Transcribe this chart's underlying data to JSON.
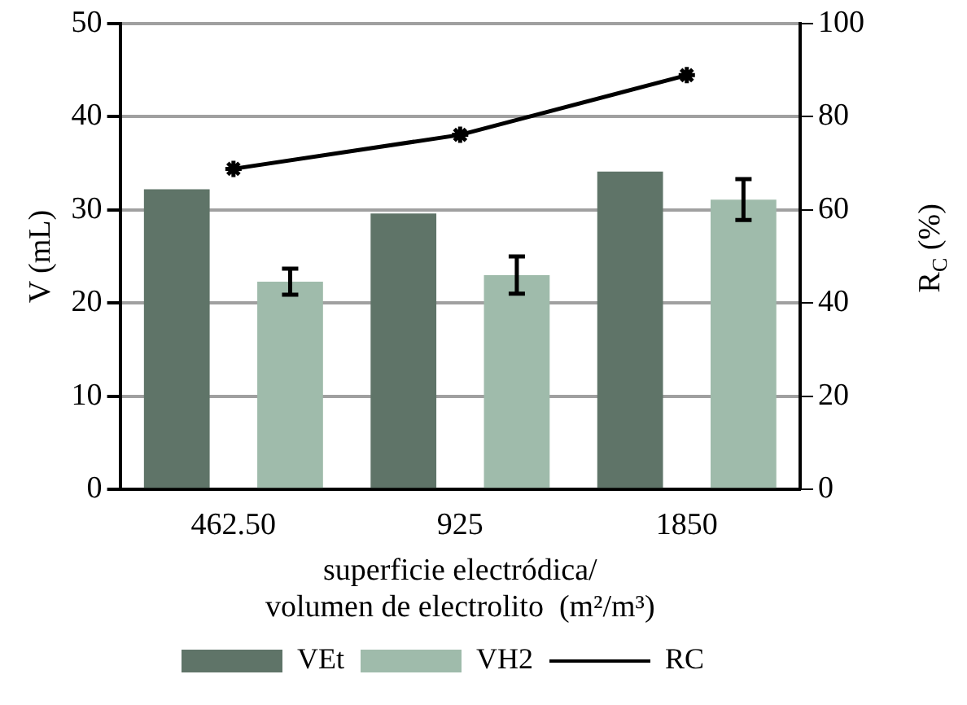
{
  "chart_data": {
    "type": "bar",
    "xlabel": "superficie electródica/\nvolumen de electrolito  (m²/m³)",
    "ylabel": "V (mL)",
    "y2label": "R$_{C}$ (%)",
    "categories": [
      "462.50",
      "925",
      "1850"
    ],
    "series": [
      {
        "name": "VEt",
        "color": "#5f7468",
        "values": [
          32.2,
          29.6,
          34.1
        ]
      },
      {
        "name": "VH2",
        "color": "#9fbbab",
        "values": [
          22.3,
          23.0,
          31.1
        ],
        "errors": [
          1.4,
          2.0,
          2.2
        ]
      },
      {
        "name": "RC",
        "type": "line",
        "axis": "y2",
        "color": "#000000",
        "values": [
          68.8,
          76.1,
          88.9
        ],
        "marker": "cross"
      }
    ],
    "ylim": [
      0,
      50
    ],
    "yticks": [
      0,
      10,
      20,
      30,
      40,
      50
    ],
    "y2lim": [
      0,
      100
    ],
    "y2ticks": [
      0,
      20,
      40,
      60,
      80,
      100
    ],
    "grid": "y",
    "legend": "bottom"
  }
}
